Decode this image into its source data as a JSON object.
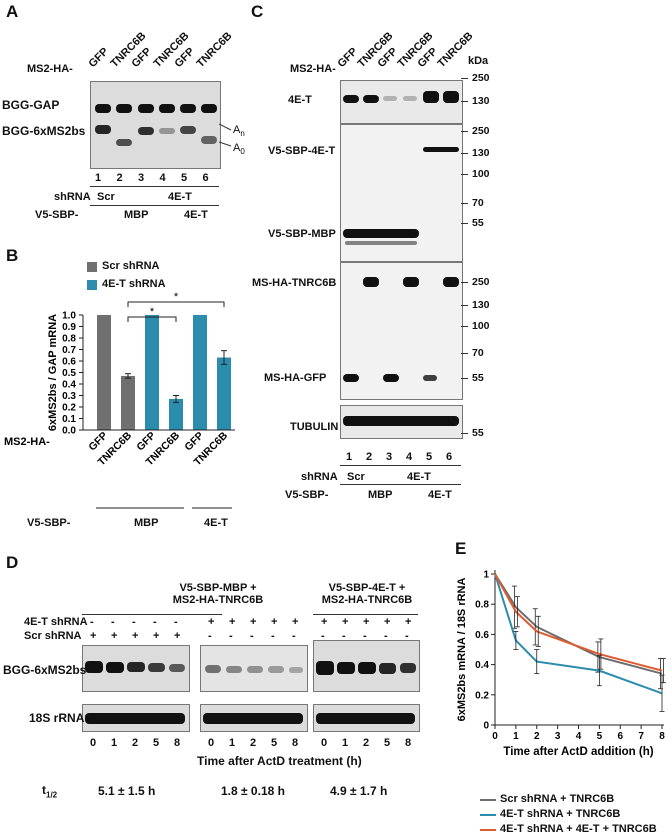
{
  "panels": {
    "A": {
      "letter": "A",
      "header_label": "MS2-HA-",
      "lane_headers": [
        "GFP",
        "TNRC6B",
        "GFP",
        "TNRC6B",
        "GFP",
        "TNRC6B"
      ],
      "row_labels": [
        "BGG-GAP",
        "BGG-6xMS2bs"
      ],
      "right_labels": {
        "an": "A",
        "an_sub": "n",
        "a0": "A",
        "a0_sub": "0"
      },
      "lane_numbers": [
        "1",
        "2",
        "3",
        "4",
        "5",
        "6"
      ],
      "shrna_label": "shRNA",
      "shrna_groups": [
        "Scr",
        "4E-T"
      ],
      "v5_label": "V5-SBP-",
      "v5_groups": [
        "MBP",
        "4E-T"
      ]
    },
    "B": {
      "letter": "B",
      "legend": [
        "Scr shRNA",
        "4E-T shRNA"
      ],
      "ylabel": "6xMS2bs / GAP mRNA",
      "yticks": [
        "0.0",
        "0.1",
        "0.2",
        "0.3",
        "0.4",
        "0.5",
        "0.6",
        "0.7",
        "0.8",
        "0.9",
        "1.0"
      ],
      "sig": [
        "*",
        "*"
      ],
      "ms2_label": "MS2-HA-",
      "xticks": [
        "GFP",
        "TNRC6B",
        "GFP",
        "TNRC6B",
        "GFP",
        "TNRC6B"
      ],
      "v5_label": "V5-SBP-",
      "v5_groups": [
        "MBP",
        "4E-T"
      ]
    },
    "C": {
      "letter": "C",
      "header_label": "MS2-HA-",
      "lane_headers": [
        "GFP",
        "TNRC6B",
        "GFP",
        "TNRC6B",
        "GFP",
        "TNRC6B"
      ],
      "kda": "kDa",
      "row_labels": [
        "4E-T",
        "V5-SBP-4E-T",
        "V5-SBP-MBP",
        "MS-HA-TNRC6B",
        "MS-HA-GFP",
        "TUBULIN"
      ],
      "markers": [
        "250",
        "130",
        "250",
        "130",
        "100",
        "70",
        "55",
        "250",
        "130",
        "100",
        "70",
        "55",
        "55"
      ],
      "lane_numbers": [
        "1",
        "2",
        "3",
        "4",
        "5",
        "6"
      ],
      "shrna_label": "shRNA",
      "shrna_groups": [
        "Scr",
        "4E-T"
      ],
      "v5_label": "V5-SBP-",
      "v5_groups": [
        "MBP",
        "4E-T"
      ]
    },
    "D": {
      "letter": "D",
      "group1_title": [
        "V5-SBP-MBP +",
        "MS2-HA-TNRC6B"
      ],
      "group2_title": [
        "V5-SBP-4E-T +",
        "MS2-HA-TNRC6B"
      ],
      "row_4et": "4E-T shRNA",
      "row_scr": "Scr shRNA",
      "signs_4et": [
        "-",
        "-",
        "-",
        "-",
        "-",
        "+",
        "+",
        "+",
        "+",
        "+",
        "+",
        "+",
        "+",
        "+",
        "+"
      ],
      "signs_scr": [
        "+",
        "+",
        "+",
        "+",
        "+",
        "-",
        "-",
        "-",
        "-",
        "-",
        "-",
        "-",
        "-",
        "-",
        "-"
      ],
      "blot_labels": [
        "BGG-6xMS2bs",
        "18S rRNA"
      ],
      "timepoints": [
        "0",
        "1",
        "2",
        "5",
        "8",
        "0",
        "1",
        "2",
        "5",
        "8",
        "0",
        "1",
        "2",
        "5",
        "8"
      ],
      "xlabel": "Time after ActD treatment (h)",
      "thalf_label": "t",
      "thalf_sub": "1/2",
      "thalf_values": [
        "5.1 ± 1.5 h",
        "1.8 ± 0.18 h",
        "4.9 ± 1.7 h"
      ]
    },
    "E": {
      "letter": "E",
      "legend": [
        "Scr shRNA + TNRC6B",
        "4E-T shRNA + TNRC6B",
        "4E-T shRNA + 4E-T + TNRC6B"
      ]
    }
  },
  "chart_data": [
    {
      "type": "bar",
      "panel": "B",
      "categories": [
        "GFP",
        "TNRC6B",
        "GFP",
        "TNRC6B",
        "GFP",
        "TNRC6B"
      ],
      "groups": [
        "MBP",
        "MBP",
        "MBP",
        "MBP",
        "4E-T",
        "4E-T"
      ],
      "series_of_bar": [
        "Scr shRNA",
        "Scr shRNA",
        "4E-T shRNA",
        "4E-T shRNA",
        "4E-T shRNA",
        "4E-T shRNA"
      ],
      "values": [
        1.0,
        0.47,
        1.0,
        0.27,
        1.0,
        0.63
      ],
      "errors": [
        0,
        0.02,
        0,
        0.03,
        0,
        0.06
      ],
      "ylabel": "6xMS2bs / GAP mRNA",
      "ylim": [
        0,
        1.0
      ],
      "colors": {
        "Scr shRNA": "#707070",
        "4E-T shRNA": "#2b8cad"
      }
    },
    {
      "type": "line",
      "panel": "E",
      "x": [
        0,
        1,
        2,
        5,
        8
      ],
      "series": [
        {
          "name": "Scr shRNA + TNRC6B",
          "values": [
            1.0,
            0.78,
            0.65,
            0.45,
            0.34
          ],
          "errors": [
            0,
            0.14,
            0.12,
            0.1,
            0.1
          ],
          "color": "#6d6d6d"
        },
        {
          "name": "4E-T shRNA + TNRC6B",
          "values": [
            1.0,
            0.56,
            0.42,
            0.36,
            0.21
          ],
          "errors": [
            0,
            0.06,
            0.08,
            0.1,
            0.12
          ],
          "color": "#2b8cad"
        },
        {
          "name": "4E-T shRNA + 4E-T + TNRC6B",
          "values": [
            1.0,
            0.75,
            0.62,
            0.47,
            0.36
          ],
          "errors": [
            0,
            0.1,
            0.1,
            0.1,
            0.08
          ],
          "color": "#e05a30"
        }
      ],
      "xticks": [
        "0",
        "1",
        "2",
        "3",
        "4",
        "5",
        "6",
        "7",
        "8"
      ],
      "yticks": [
        "0",
        "0.2",
        "0.4",
        "0.6",
        "0.8",
        "1"
      ],
      "xlabel": "Time after ActD addition (h)",
      "ylabel": "6xMS2bs mRNA / 18S rRNA",
      "xlim": [
        0,
        8
      ],
      "ylim": [
        0,
        1
      ],
      "legend_position": "bottom"
    }
  ]
}
